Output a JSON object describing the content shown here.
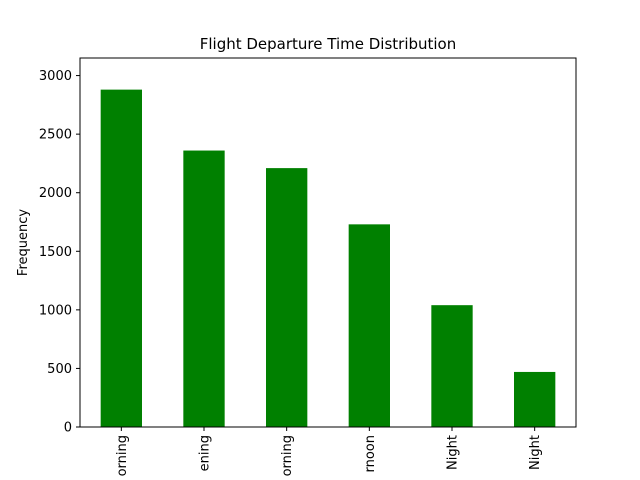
{
  "chart_data": {
    "type": "bar",
    "title": "Flight Departure Time Distribution",
    "xlabel": "",
    "ylabel": "Frequency",
    "categories": [
      "Early_Morning",
      "Evening",
      "Morning",
      "Afternoon",
      "Night",
      "Late_Night"
    ],
    "tick_labels": [
      "orning",
      "ening",
      "orning",
      "rnoon",
      "Night",
      "Night"
    ],
    "values": [
      2880,
      2360,
      2210,
      1730,
      1040,
      470
    ],
    "yticks": [
      0,
      500,
      1000,
      1500,
      2000,
      2500,
      3000
    ],
    "ylim": [
      0,
      3150
    ],
    "bar_color": "#008000",
    "grid": false
  }
}
